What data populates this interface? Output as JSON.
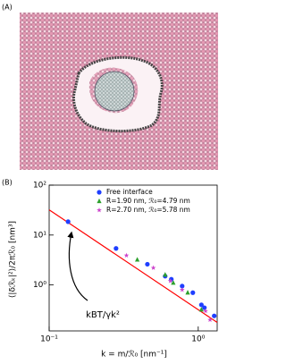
{
  "panel_labels": [
    "(A)",
    "(B)"
  ],
  "chart_data": {
    "type": "scatter",
    "x_label": "k = m/ℛ₀ [nm⁻¹]",
    "y_label": "⟨|δℛₖ|²⟩/2πℛ₀ [nm³]",
    "annotation": "kBT/γk²",
    "log_x": true,
    "log_y": true,
    "xlim": [
      0.1,
      1.34
    ],
    "ylim": [
      0.12,
      100
    ],
    "xticks": [
      {
        "value": 0.1,
        "label": "10⁻¹"
      },
      {
        "value": 1,
        "label": "10⁰"
      }
    ],
    "yticks": [
      {
        "value": 1,
        "label": "10⁰"
      },
      {
        "value": 10,
        "label": "10¹"
      },
      {
        "value": 100,
        "label": "10²"
      }
    ],
    "legend": "top-right",
    "fit": {
      "color": "#ff0000",
      "x": [
        0.1,
        1.34
      ],
      "values": [
        32,
        0.178
      ]
    },
    "series": [
      {
        "name": "Free interface",
        "color": "#1f3fff",
        "marker": "circle",
        "x": [
          0.134,
          0.281,
          0.456,
          0.6,
          0.66,
          0.78,
          0.92,
          1.05,
          1.1,
          1.28
        ],
        "values": [
          18.5,
          5.4,
          2.6,
          1.5,
          1.3,
          0.95,
          0.7,
          0.4,
          0.35,
          0.24
        ]
      },
      {
        "name": "R=1.90 nm, ℛ₀=4.79 nm",
        "color": "#2ca02c",
        "marker": "triangle",
        "x": [
          0.39,
          0.6,
          0.68,
          0.85,
          1.05
        ],
        "values": [
          3.2,
          1.6,
          1.1,
          0.7,
          0.32
        ]
      },
      {
        "name": "R=2.70 nm, ℛ₀=5.78 nm",
        "color": "#cc44cc",
        "marker": "star",
        "x": [
          0.33,
          0.5,
          0.65,
          0.78,
          1.12,
          1.2
        ],
        "values": [
          3.9,
          2.2,
          1.2,
          0.8,
          0.3,
          0.2
        ]
      }
    ]
  }
}
